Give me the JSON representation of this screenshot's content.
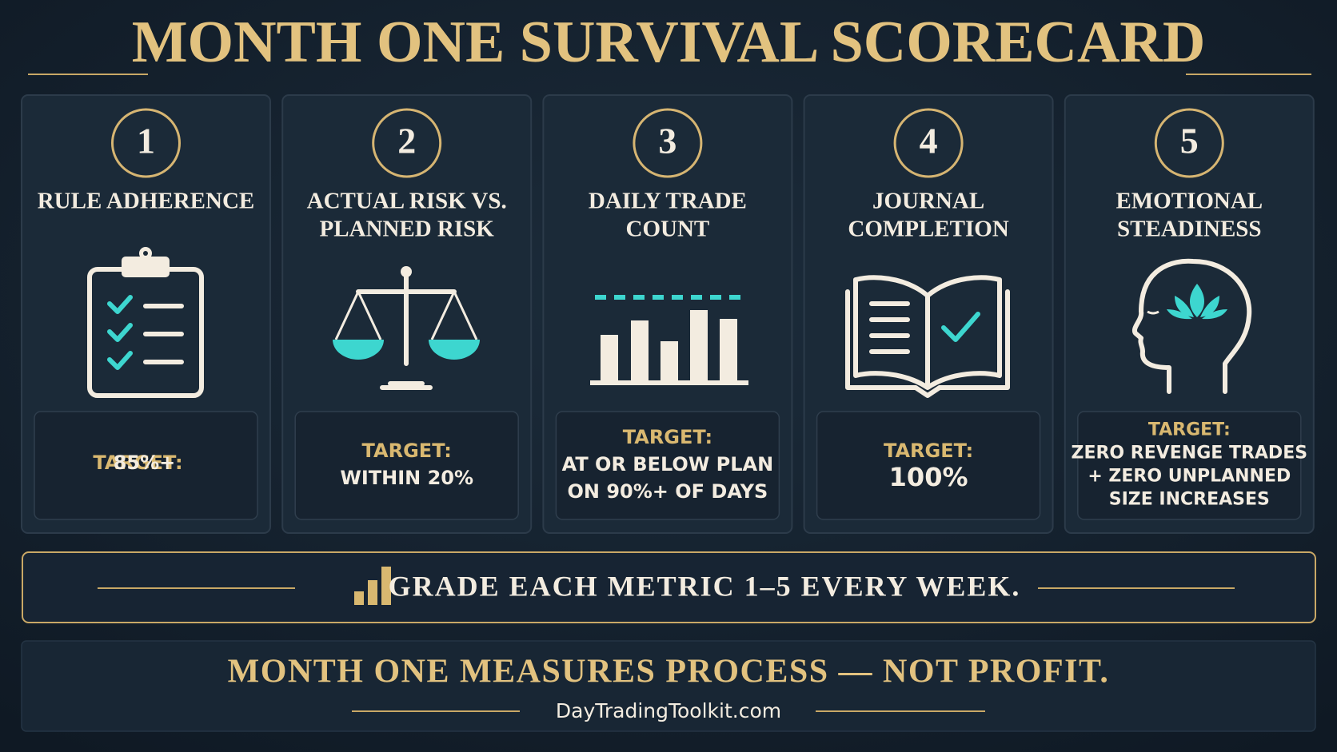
{
  "title": "MONTH ONE SURVIVAL SCORECARD",
  "cards": [
    {
      "number": "1",
      "title": [
        "RULE ADHERENCE"
      ],
      "target_label": "TARGET:",
      "target": [
        "85%+"
      ]
    },
    {
      "number": "2",
      "title": [
        "ACTUAL RISK VS.",
        "PLANNED RISK"
      ],
      "target_label": "TARGET:",
      "target": [
        "WITHIN 20%"
      ]
    },
    {
      "number": "3",
      "title": [
        "DAILY TRADE",
        "COUNT"
      ],
      "target_label": "TARGET:",
      "target": [
        "AT OR BELOW PLAN",
        "ON 90%+ OF DAYS"
      ]
    },
    {
      "number": "4",
      "title": [
        "JOURNAL",
        "COMPLETION"
      ],
      "target_label": "TARGET:",
      "target": [
        "100%"
      ]
    },
    {
      "number": "5",
      "title": [
        "EMOTIONAL",
        "STEADINESS"
      ],
      "target_label": "TARGET:",
      "target": [
        "ZERO REVENGE TRADES",
        "+ ZERO UNPLANNED",
        "SIZE INCREASES"
      ]
    }
  ],
  "banner": "GRADE EACH METRIC 1–5 EVERY WEEK.",
  "footer": {
    "tagline": "MONTH ONE MEASURES PROCESS — NOT PROFIT.",
    "site": "DayTradingToolkit.com"
  }
}
